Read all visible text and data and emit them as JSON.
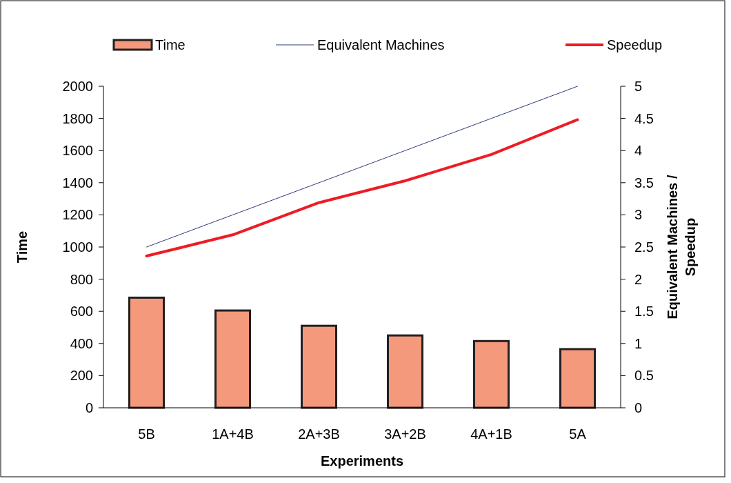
{
  "chart_data": {
    "type": "bar",
    "xlabel": "Experiments",
    "ylabel": "Time",
    "y2label": "Equivalent Machines / Speedup",
    "categories": [
      "5B",
      "1A+4B",
      "2A+3B",
      "3A+2B",
      "4A+1B",
      "5A"
    ],
    "series": [
      {
        "name": "Time",
        "color": "#f4997b",
        "values": [
          685,
          605,
          510,
          450,
          415,
          365
        ]
      },
      {
        "name": "Equivalent Machines",
        "type": "line",
        "axis": "y2",
        "color": "#2e3a7a",
        "values": [
          2.5,
          3,
          3.5,
          4,
          4.5,
          5
        ]
      },
      {
        "name": "Speedup",
        "type": "line",
        "axis": "y2",
        "color": "#ee1c25",
        "values": [
          2.36,
          2.69,
          3.19,
          3.53,
          3.94,
          4.48
        ]
      }
    ],
    "ylim": [
      0,
      2000
    ],
    "yticks": [
      0,
      200,
      400,
      600,
      800,
      1000,
      1200,
      1400,
      1600,
      1800,
      2000
    ],
    "y2lim": [
      0,
      5
    ],
    "y2ticks": [
      0,
      0.5,
      1,
      1.5,
      2,
      2.5,
      3,
      3.5,
      4,
      4.5,
      5
    ],
    "grid": false,
    "legend": "top",
    "marker": "none",
    "line_style": "solid"
  }
}
